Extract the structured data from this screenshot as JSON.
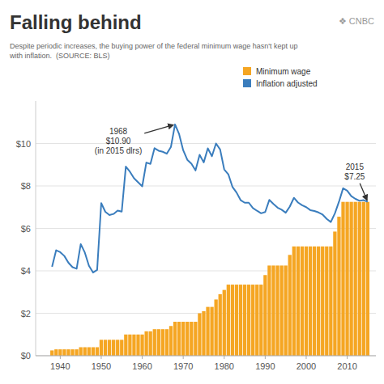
{
  "chart_data": {
    "type": "bar",
    "title": "Falling behind",
    "subtitle": "Despite periodic increases, the buying power of the federal minimum wage hasn't kept up\nwith inflation.  (SOURCE: BLS)",
    "credit": "❖ CNBC",
    "x": [
      1938,
      1939,
      1940,
      1941,
      1942,
      1943,
      1944,
      1945,
      1946,
      1947,
      1948,
      1949,
      1950,
      1951,
      1952,
      1953,
      1954,
      1955,
      1956,
      1957,
      1958,
      1959,
      1960,
      1961,
      1962,
      1963,
      1964,
      1965,
      1966,
      1967,
      1968,
      1969,
      1970,
      1971,
      1972,
      1973,
      1974,
      1975,
      1976,
      1977,
      1978,
      1979,
      1980,
      1981,
      1982,
      1983,
      1984,
      1985,
      1986,
      1987,
      1988,
      1989,
      1990,
      1991,
      1992,
      1993,
      1994,
      1995,
      1996,
      1997,
      1998,
      1999,
      2000,
      2001,
      2002,
      2003,
      2004,
      2005,
      2006,
      2007,
      2008,
      2009,
      2010,
      2011,
      2012,
      2013,
      2014,
      2015
    ],
    "series": [
      {
        "name": "Minimum wage",
        "type": "bar",
        "color": "#F5A623",
        "values": [
          0.25,
          0.3,
          0.3,
          0.3,
          0.3,
          0.3,
          0.3,
          0.4,
          0.4,
          0.4,
          0.4,
          0.4,
          0.75,
          0.75,
          0.75,
          0.75,
          0.75,
          0.75,
          1.0,
          1.0,
          1.0,
          1.0,
          1.0,
          1.15,
          1.15,
          1.25,
          1.25,
          1.25,
          1.25,
          1.4,
          1.6,
          1.6,
          1.6,
          1.6,
          1.6,
          1.6,
          2.0,
          2.1,
          2.3,
          2.3,
          2.65,
          2.9,
          3.1,
          3.35,
          3.35,
          3.35,
          3.35,
          3.35,
          3.35,
          3.35,
          3.35,
          3.35,
          3.8,
          4.25,
          4.25,
          4.25,
          4.25,
          4.25,
          4.75,
          5.15,
          5.15,
          5.15,
          5.15,
          5.15,
          5.15,
          5.15,
          5.15,
          5.15,
          5.15,
          5.85,
          6.55,
          7.25,
          7.25,
          7.25,
          7.25,
          7.25,
          7.25,
          7.25
        ]
      },
      {
        "name": "Inflation adjusted",
        "type": "line",
        "color": "#3A7DBD",
        "values": [
          4.19,
          4.97,
          4.88,
          4.7,
          4.38,
          4.17,
          4.1,
          5.26,
          4.86,
          4.24,
          3.92,
          4.04,
          7.19,
          6.78,
          6.63,
          6.68,
          6.84,
          6.79,
          8.91,
          8.67,
          8.36,
          8.17,
          7.98,
          9.1,
          9.04,
          9.78,
          9.66,
          9.61,
          9.52,
          9.84,
          10.9,
          10.44,
          9.68,
          9.23,
          9.05,
          8.73,
          9.47,
          9.11,
          9.77,
          9.4,
          10.0,
          9.72,
          8.78,
          8.55,
          7.96,
          7.69,
          7.33,
          7.21,
          7.21,
          6.96,
          6.83,
          6.71,
          6.77,
          7.34,
          7.15,
          6.98,
          6.88,
          6.74,
          7.03,
          7.44,
          7.22,
          7.09,
          7.0,
          6.86,
          6.82,
          6.75,
          6.65,
          6.45,
          6.3,
          6.71,
          7.26,
          7.89,
          7.78,
          7.52,
          7.39,
          7.3,
          7.33,
          7.25
        ]
      }
    ],
    "xlim": [
      1934,
      2017
    ],
    "ylim": [
      0,
      12
    ],
    "xticks": [
      1940,
      1950,
      1960,
      1970,
      1980,
      1990,
      2000,
      2010
    ],
    "yticks": [
      {
        "value": 0,
        "label": "$0"
      },
      {
        "value": 2,
        "label": "$2"
      },
      {
        "value": 4,
        "label": "$4"
      },
      {
        "value": 6,
        "label": "$6"
      },
      {
        "value": 8,
        "label": "$8"
      },
      {
        "value": 10,
        "label": "$10"
      }
    ],
    "grid": true,
    "legend": "top-right",
    "annotations": [
      {
        "text": "1968\n$10.90\n(in 2015 dlrs)",
        "x": 1968,
        "y": 10.9
      },
      {
        "text": "2015\n$7.25",
        "x": 2015,
        "y": 7.25
      }
    ]
  }
}
